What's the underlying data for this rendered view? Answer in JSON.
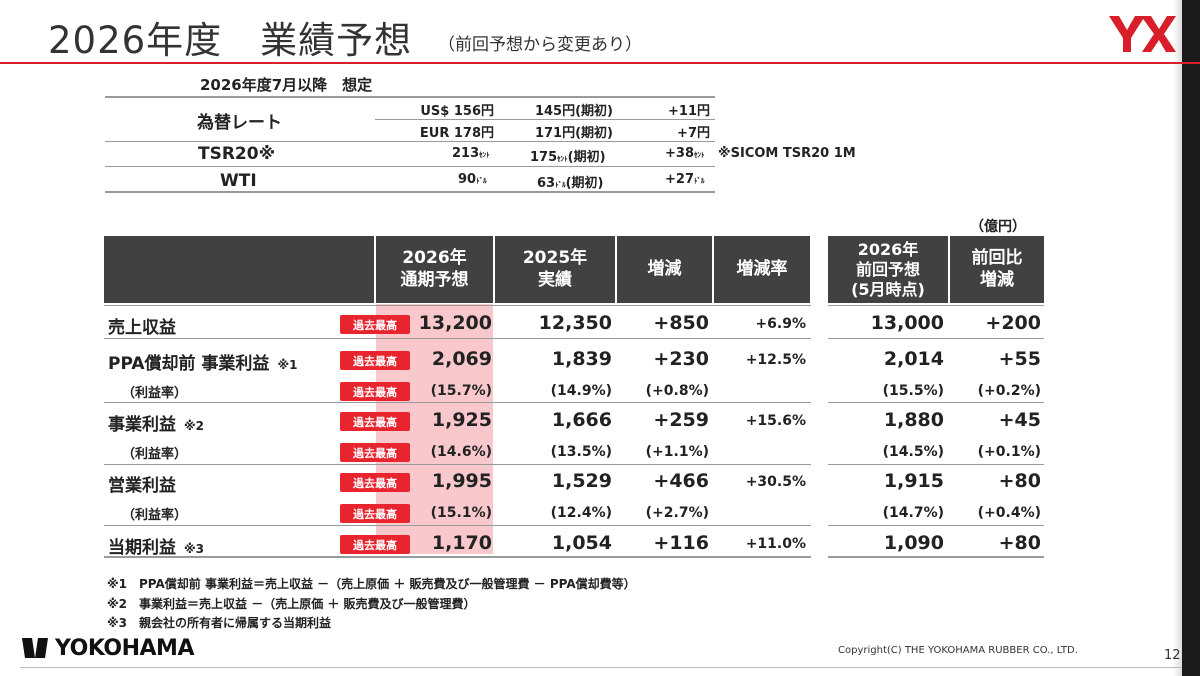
{
  "header": {
    "title": "2026年度　業績予想",
    "subtitle": "（前回予想から変更あり）"
  },
  "assumptions": {
    "title": "2026年度7月以降　想定",
    "fx_label": "為替レート",
    "rows": [
      {
        "c1": "US$ 156円",
        "c2": "145円(期初)",
        "c3": "+11円",
        "note": ""
      },
      {
        "c1": "EUR 178円",
        "c2": "171円(期初)",
        "c3": "+7円",
        "note": ""
      }
    ],
    "tsr": {
      "label": "TSR20※",
      "c1": "213",
      "c2": "175",
      "c2b": "(期初)",
      "c3": "+38",
      "note": "※SICOM TSR20 1M",
      "unit": "ｾﾝﾄ"
    },
    "wti": {
      "label": "WTI",
      "c1": "90",
      "c2": "63",
      "c2b": "(期初)",
      "c3": "+27",
      "unit": "ﾄﾞﾙ"
    }
  },
  "table": {
    "unit": "（億円）",
    "headers": [
      "2026年\n通期予想",
      "2025年\n実績",
      "増減",
      "増減率",
      "2026年\n前回予想\n(5月時点)",
      "前回比\n増減"
    ],
    "badge": "過去最高",
    "rows": [
      {
        "label": "売上収益",
        "note": "",
        "v": [
          "13,200",
          "12,350",
          "+850",
          "+6.9%",
          "13,000",
          "+200"
        ]
      },
      {
        "label": "PPA償却前 事業利益",
        "note": "※1",
        "v": [
          "2,069",
          "1,839",
          "+230",
          "+12.5%",
          "2,014",
          "+55"
        ]
      },
      {
        "label": "（利益率）",
        "note": "",
        "v": [
          "(15.7%)",
          "(14.9%)",
          "(+0.8%)",
          "",
          "(15.5%)",
          "(+0.2%)"
        ]
      },
      {
        "label": "事業利益",
        "note": "※2",
        "v": [
          "1,925",
          "1,666",
          "+259",
          "+15.6%",
          "1,880",
          "+45"
        ]
      },
      {
        "label": "（利益率）",
        "note": "",
        "v": [
          "(14.6%)",
          "(13.5%)",
          "(+1.1%)",
          "",
          "(14.5%)",
          "(+0.1%)"
        ]
      },
      {
        "label": "営業利益",
        "note": "",
        "v": [
          "1,995",
          "1,529",
          "+466",
          "+30.5%",
          "1,915",
          "+80"
        ]
      },
      {
        "label": "（利益率）",
        "note": "",
        "v": [
          "(15.1%)",
          "(12.4%)",
          "(+2.7%)",
          "",
          "(14.7%)",
          "(+0.4%)"
        ]
      },
      {
        "label": "当期利益",
        "note": "※3",
        "v": [
          "1,170",
          "1,054",
          "+116",
          "+11.0%",
          "1,090",
          "+80"
        ]
      }
    ]
  },
  "notes": [
    "※1　PPA償却前 事業利益＝売上収益 －（売上原価 ＋ 販売費及び一般管理費 － PPA償却費等）",
    "※2　事業利益＝売上収益 －（売上原価 ＋ 販売費及び一般管理費）",
    "※3　親会社の所有者に帰属する当期利益"
  ],
  "footer": {
    "brand": "YOKOHAMA",
    "copyright": "Copyright(C) THE YOKOHAMA RUBBER CO., LTD.",
    "page": "12",
    "logo_text": "YX"
  },
  "colors": {
    "accent": "#d81e2a",
    "header_bg": "#414141",
    "highlight": "#f8c8cc",
    "badge": "#e8242f"
  }
}
